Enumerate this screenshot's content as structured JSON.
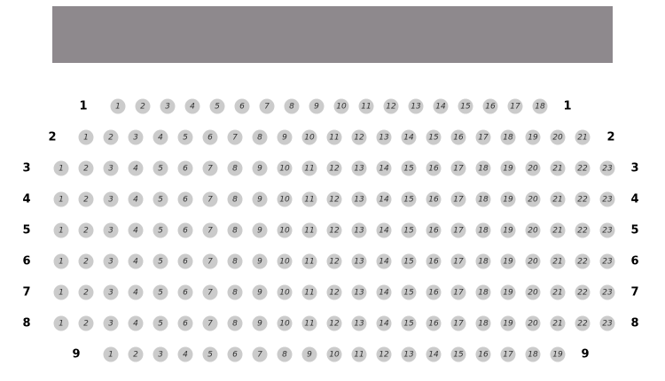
{
  "stage": {
    "color": "#8e898d"
  },
  "seat_color": "#cbcbcb",
  "rows": [
    {
      "label": "1",
      "seats": [
        1,
        2,
        3,
        4,
        5,
        6,
        7,
        8,
        9,
        10,
        11,
        12,
        13,
        14,
        15,
        16,
        17,
        18
      ]
    },
    {
      "label": "2",
      "seats": [
        1,
        2,
        3,
        4,
        5,
        6,
        7,
        8,
        9,
        10,
        11,
        12,
        13,
        14,
        15,
        16,
        17,
        18,
        19,
        20,
        21
      ]
    },
    {
      "label": "3",
      "seats": [
        1,
        2,
        3,
        4,
        5,
        6,
        7,
        8,
        9,
        10,
        11,
        12,
        13,
        14,
        15,
        16,
        17,
        18,
        19,
        20,
        21,
        22,
        23
      ]
    },
    {
      "label": "4",
      "seats": [
        1,
        2,
        3,
        4,
        5,
        6,
        7,
        8,
        9,
        10,
        11,
        12,
        13,
        14,
        15,
        16,
        17,
        18,
        19,
        20,
        21,
        22,
        23
      ]
    },
    {
      "label": "5",
      "seats": [
        1,
        2,
        3,
        4,
        5,
        6,
        7,
        8,
        9,
        10,
        11,
        12,
        13,
        14,
        15,
        16,
        17,
        18,
        19,
        20,
        21,
        22,
        23
      ]
    },
    {
      "label": "6",
      "seats": [
        1,
        2,
        3,
        4,
        5,
        6,
        7,
        8,
        9,
        10,
        11,
        12,
        13,
        14,
        15,
        16,
        17,
        18,
        19,
        20,
        21,
        22,
        23
      ]
    },
    {
      "label": "7",
      "seats": [
        1,
        2,
        3,
        4,
        5,
        6,
        7,
        8,
        9,
        10,
        11,
        12,
        13,
        14,
        15,
        16,
        17,
        18,
        19,
        20,
        21,
        22,
        23
      ]
    },
    {
      "label": "8",
      "seats": [
        1,
        2,
        3,
        4,
        5,
        6,
        7,
        8,
        9,
        10,
        11,
        12,
        13,
        14,
        15,
        16,
        17,
        18,
        19,
        20,
        21,
        22,
        23
      ]
    },
    {
      "label": "9",
      "seats": [
        1,
        2,
        3,
        4,
        5,
        6,
        7,
        8,
        9,
        10,
        11,
        12,
        13,
        14,
        15,
        16,
        17,
        18,
        19
      ]
    }
  ]
}
